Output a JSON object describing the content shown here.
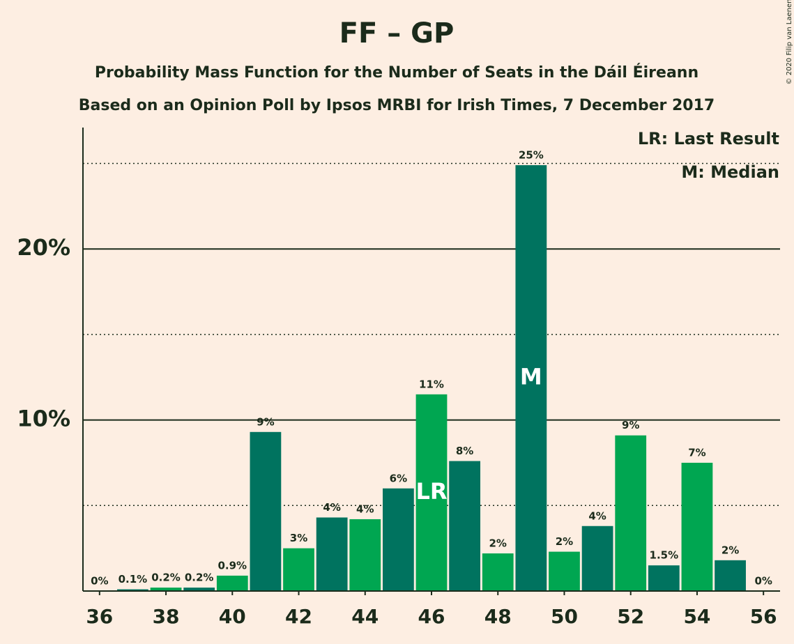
{
  "chart_data": {
    "type": "bar",
    "title": "FF – GP",
    "subtitle": "Probability Mass Function for the Number of Seats in the Dáil Éireann",
    "subtitle2": "Based on an Opinion Poll by Ipsos MRBI for Irish Times, 7 December 2017",
    "copyright": "© 2020 Filip van Laenen",
    "legend": [
      "LR: Last Result",
      "M: Median"
    ],
    "x": [
      36,
      37,
      38,
      39,
      40,
      41,
      42,
      43,
      44,
      45,
      46,
      47,
      48,
      49,
      50,
      51,
      52,
      53,
      54,
      55,
      56
    ],
    "values": [
      0,
      0.1,
      0.2,
      0.2,
      0.9,
      9.3,
      2.5,
      4.3,
      4.2,
      6.0,
      11.5,
      7.6,
      2.2,
      24.9,
      2.3,
      3.8,
      9.1,
      1.5,
      7.5,
      1.8,
      0
    ],
    "value_labels": [
      "0%",
      "0.1%",
      "0.2%",
      "0.2%",
      "0.9%",
      "9%",
      "3%",
      "4%",
      "4%",
      "6%",
      "11%",
      "8%",
      "2%",
      "25%",
      "2%",
      "4%",
      "9%",
      "1.5%",
      "7%",
      "2%",
      "0%"
    ],
    "colors": [
      "#00a651",
      "#00735f",
      "#00a651",
      "#00735f",
      "#00a651",
      "#00735f",
      "#00a651",
      "#00735f",
      "#00a651",
      "#00735f",
      "#00a651",
      "#00735f",
      "#00a651",
      "#00735f",
      "#00a651",
      "#00735f",
      "#00a651",
      "#00735f",
      "#00a651",
      "#00735f",
      "#00a651"
    ],
    "annotations": [
      {
        "x": 46,
        "text": "LR"
      },
      {
        "x": 49,
        "text": "M"
      }
    ],
    "xlim": [
      35.5,
      56.5
    ],
    "xticks": [
      36,
      38,
      40,
      42,
      44,
      46,
      48,
      50,
      52,
      54,
      56
    ],
    "ylim": [
      0,
      27.1
    ],
    "yticks": [
      {
        "value": 10,
        "label": "10%"
      },
      {
        "value": 20,
        "label": "20%"
      }
    ],
    "minor_yticks": [
      5,
      15,
      25
    ],
    "grid": true
  }
}
